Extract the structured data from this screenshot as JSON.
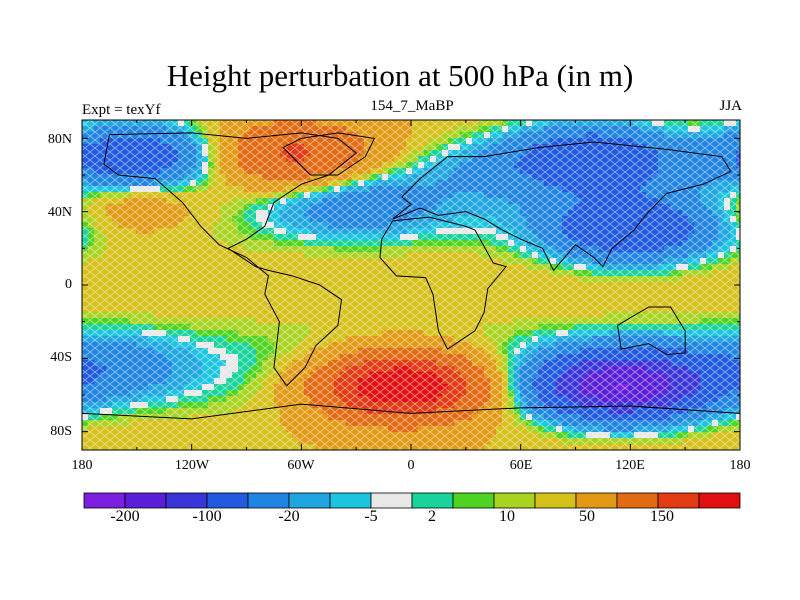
{
  "title": "Height perturbation at 500 hPa (in m)",
  "left_string": "Expt = texYf",
  "center_string": "154_7_MaBP",
  "right_string": "JJA",
  "lat_labels": [
    "80N",
    "40N",
    "0",
    "40S",
    "80S"
  ],
  "lon_labels": [
    "180",
    "120W",
    "60W",
    "0",
    "60E",
    "120E",
    "180"
  ],
  "colorbar": {
    "labels": [
      "-200",
      "-100",
      "-20",
      "-5",
      "2",
      "10",
      "50",
      "150"
    ],
    "colors": [
      "#7b1fe0",
      "#5a1ed8",
      "#3a35d8",
      "#1f5ae0",
      "#2084e2",
      "#1fa6e0",
      "#1cc4e0",
      "#e8e8e8",
      "#19d39a",
      "#4fd321",
      "#a8d321",
      "#d6c01a",
      "#e29a15",
      "#e26a12",
      "#e23a12",
      "#e20f10"
    ]
  },
  "chart_data": {
    "type": "heatmap",
    "title": "Height perturbation at 500 hPa (in m)",
    "subtitle": "154_7_MaBP",
    "season": "JJA",
    "experiment": "Expt = texYf",
    "x_range": [
      -180,
      180
    ],
    "y_range": [
      -90,
      90
    ],
    "x_ticks": [
      "180",
      "120W",
      "60W",
      "0",
      "60E",
      "120E",
      "180"
    ],
    "y_ticks": [
      "80N",
      "40N",
      "0",
      "40S",
      "80S"
    ],
    "colorbar_levels": [
      "-200",
      "-100",
      "-20",
      "-5",
      "2",
      "10",
      "50",
      "150"
    ],
    "features": [
      {
        "type": "high",
        "lon": -5,
        "lat": -55,
        "value": 200
      },
      {
        "type": "high",
        "lon": -65,
        "lat": 70,
        "value": 100
      },
      {
        "type": "high",
        "lon": -150,
        "lat": 45,
        "value": 40
      },
      {
        "type": "low",
        "lon": 115,
        "lat": -55,
        "value": -200
      },
      {
        "type": "low",
        "lon": 100,
        "lat": 70,
        "value": -100
      },
      {
        "type": "low",
        "lon": -150,
        "lat": 70,
        "value": -100
      },
      {
        "type": "low",
        "lon": 120,
        "lat": 30,
        "value": -100
      },
      {
        "type": "low",
        "lon": -30,
        "lat": 45,
        "value": -40
      },
      {
        "type": "low",
        "lon": -170,
        "lat": -45,
        "value": -40
      },
      {
        "type": "low",
        "lon": 40,
        "lat": 65,
        "value": -20
      }
    ]
  }
}
